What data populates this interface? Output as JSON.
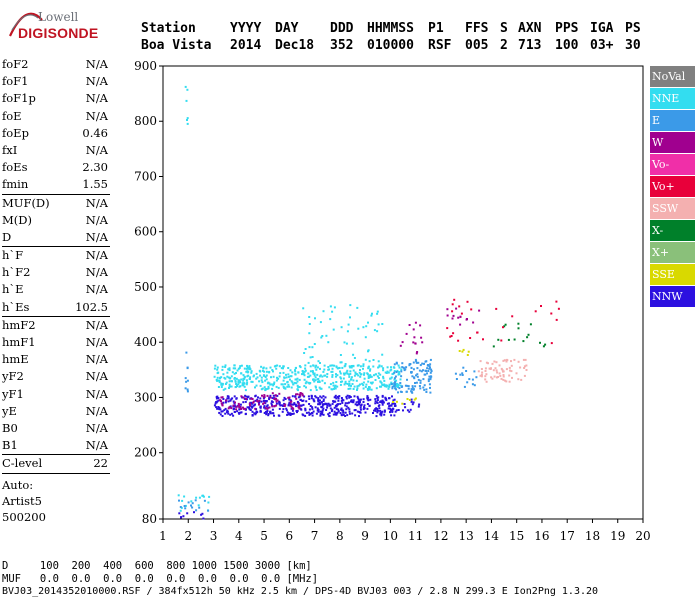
{
  "logo": {
    "line1": "Lowell",
    "line2": "DIGISONDE"
  },
  "header": {
    "row1": [
      "Station",
      "YYYY",
      "DAY",
      "DDD",
      "HHMMSS",
      "P1",
      "FFS",
      "S",
      "AXN",
      "PPS",
      "IGA",
      "PS"
    ],
    "row2": [
      "Boa Vista",
      "2014",
      "Dec18",
      "352",
      "010000",
      "RSF",
      "005",
      "2",
      "713",
      "100",
      "03+",
      "30"
    ]
  },
  "params_group1": [
    {
      "k": "foF2",
      "v": "N/A"
    },
    {
      "k": "foF1",
      "v": "N/A"
    },
    {
      "k": "foF1p",
      "v": "N/A"
    },
    {
      "k": "foE",
      "v": "N/A"
    },
    {
      "k": "foEp",
      "v": "0.46"
    },
    {
      "k": "fxI",
      "v": "N/A"
    },
    {
      "k": "foEs",
      "v": "2.30"
    },
    {
      "k": "fmin",
      "v": "1.55"
    }
  ],
  "params_group2": [
    {
      "k": "MUF(D)",
      "v": "N/A"
    },
    {
      "k": "M(D)",
      "v": "N/A"
    },
    {
      "k": "D",
      "v": "N/A"
    }
  ],
  "params_group3": [
    {
      "k": "h`F",
      "v": "N/A"
    },
    {
      "k": "h`F2",
      "v": "N/A"
    },
    {
      "k": "h`E",
      "v": "N/A"
    },
    {
      "k": "h`Es",
      "v": "102.5"
    }
  ],
  "params_group4": [
    {
      "k": "hmF2",
      "v": "N/A"
    },
    {
      "k": "hmF1",
      "v": "N/A"
    },
    {
      "k": "hmE",
      "v": "N/A"
    },
    {
      "k": "yF2",
      "v": "N/A"
    },
    {
      "k": "yF1",
      "v": "N/A"
    },
    {
      "k": "yE",
      "v": "N/A"
    },
    {
      "k": "B0",
      "v": "N/A"
    },
    {
      "k": "B1",
      "v": "N/A"
    }
  ],
  "params_group5": [
    {
      "k": "C-level",
      "v": "22"
    }
  ],
  "autoscaling": {
    "line1": "Auto:",
    "line2": "Artist5",
    "line3": "500200"
  },
  "legend": [
    {
      "label": "NoVal",
      "color": "#808080"
    },
    {
      "label": "NNE",
      "color": "#33ddf0"
    },
    {
      "label": "E",
      "color": "#3b9ae8"
    },
    {
      "label": "W",
      "color": "#a0008f"
    },
    {
      "label": "Vo-",
      "color": "#f02fa8"
    },
    {
      "label": "Vo+",
      "color": "#e8003a"
    },
    {
      "label": "SSW",
      "color": "#f4b0b0"
    },
    {
      "label": "X-",
      "color": "#00802a"
    },
    {
      "label": "X+",
      "color": "#8ac07a"
    },
    {
      "label": "SSE",
      "color": "#d9d900"
    },
    {
      "label": "NNW",
      "color": "#2c10e0"
    }
  ],
  "footer": {
    "line1": "D     100  200  400  600  800 1000 1500 3000 [km]",
    "line2": "MUF   0.0  0.0  0.0  0.0  0.0  0.0  0.0  0.0 [MHz]",
    "line3": "BVJ03_2014352010000.RSF / 384fx512h 50 kHz 2.5 km / DPS-4D BVJ03 003 / 2.8 N 299.3 E Ion2Png 1.3.20"
  },
  "chart_data": {
    "type": "scatter",
    "xlabel": "",
    "ylabel": "",
    "xlim": [
      1,
      20
    ],
    "ylim": [
      80,
      900
    ],
    "xticks": [
      1,
      2,
      3,
      4,
      5,
      6,
      7,
      8,
      9,
      10,
      11,
      12,
      13,
      14,
      15,
      16,
      17,
      18,
      19,
      20
    ],
    "yticks": [
      80,
      200,
      300,
      400,
      500,
      600,
      700,
      800,
      900
    ],
    "series": [
      {
        "name": "NNW",
        "color": "#2c10e0",
        "regions": [
          {
            "x": [
              3.0,
              10.2
            ],
            "y": [
              268,
              305
            ],
            "density": 0.55
          },
          {
            "x": [
              10.0,
              11.2
            ],
            "y": [
              275,
              300
            ],
            "density": 0.2
          },
          {
            "x": [
              1.3,
              2.6
            ],
            "y": [
              82,
              95
            ],
            "density": 0.15
          }
        ]
      },
      {
        "name": "NNE",
        "color": "#33ddf0",
        "regions": [
          {
            "x": [
              3.0,
              10.4
            ],
            "y": [
              315,
              360
            ],
            "density": 0.45
          },
          {
            "x": [
              6.5,
              9.8
            ],
            "y": [
              360,
              470
            ],
            "density": 0.05
          },
          {
            "x": [
              1.5,
              2.8
            ],
            "y": [
              96,
              125
            ],
            "density": 0.12
          },
          {
            "x": [
              1.85,
              1.95
            ],
            "y": [
              780,
              870
            ],
            "density": 0.2
          }
        ]
      },
      {
        "name": "E",
        "color": "#3b9ae8",
        "regions": [
          {
            "x": [
              10.0,
              11.6
            ],
            "y": [
              310,
              370
            ],
            "density": 0.35
          },
          {
            "x": [
              12.5,
              13.4
            ],
            "y": [
              320,
              360
            ],
            "density": 0.12
          },
          {
            "x": [
              1.85,
              1.95
            ],
            "y": [
              310,
              400
            ],
            "density": 0.3
          },
          {
            "x": [
              1.5,
              2.8
            ],
            "y": [
              95,
              118
            ],
            "density": 0.12
          }
        ]
      },
      {
        "name": "W",
        "color": "#a0008f",
        "regions": [
          {
            "x": [
              3.2,
              6.5
            ],
            "y": [
              280,
              310
            ],
            "density": 0.25
          },
          {
            "x": [
              10.2,
              11.4
            ],
            "y": [
              380,
              440
            ],
            "density": 0.06
          },
          {
            "x": [
              12.2,
              13.5
            ],
            "y": [
              430,
              465
            ],
            "density": 0.08
          }
        ]
      },
      {
        "name": "SSW",
        "color": "#f4b0b0",
        "regions": [
          {
            "x": [
              13.4,
              15.4
            ],
            "y": [
              330,
              370
            ],
            "density": 0.25
          }
        ]
      },
      {
        "name": "SSE",
        "color": "#d9d900",
        "regions": [
          {
            "x": [
              9.6,
              11.0
            ],
            "y": [
              290,
              305
            ],
            "density": 0.1
          },
          {
            "x": [
              12.5,
              13.2
            ],
            "y": [
              378,
              388
            ],
            "density": 0.2
          }
        ]
      },
      {
        "name": "X-",
        "color": "#00802a",
        "regions": [
          {
            "x": [
              14.0,
              16.2
            ],
            "y": [
              390,
              440
            ],
            "density": 0.04
          }
        ]
      },
      {
        "name": "Vo+",
        "color": "#e8003a",
        "regions": [
          {
            "x": [
              12.2,
              17.0
            ],
            "y": [
              400,
              480
            ],
            "density": 0.02
          }
        ]
      }
    ]
  }
}
